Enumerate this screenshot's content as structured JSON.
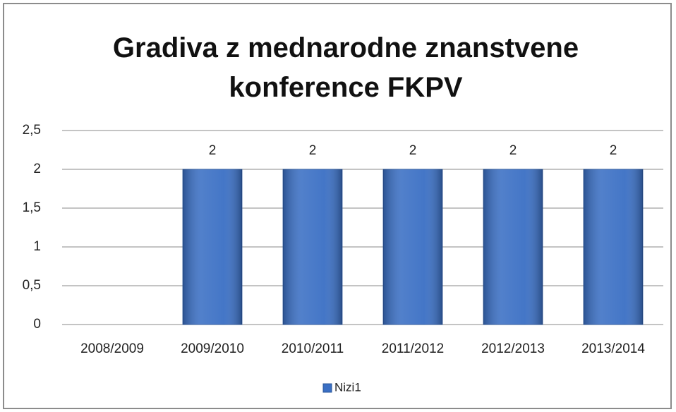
{
  "chart_data": {
    "type": "bar",
    "title": "Gradiva z mednarodne znanstvene konference FKPV",
    "categories": [
      "2008/2009",
      "2009/2010",
      "2010/2011",
      "2011/2012",
      "2012/2013",
      "2013/2014"
    ],
    "series": [
      {
        "name": "Nizi1",
        "color": "#3a6fc4",
        "values": [
          null,
          2,
          2,
          2,
          2,
          2
        ]
      }
    ],
    "ylim": [
      0,
      2.5
    ],
    "yticks": [
      0,
      {
        "value": 0.5,
        "label": "0,5"
      },
      1,
      {
        "value": 1.5,
        "label": "1,5"
      },
      2,
      {
        "value": 2.5,
        "label": "2,5"
      }
    ],
    "grid": true,
    "legend": "bottom"
  }
}
